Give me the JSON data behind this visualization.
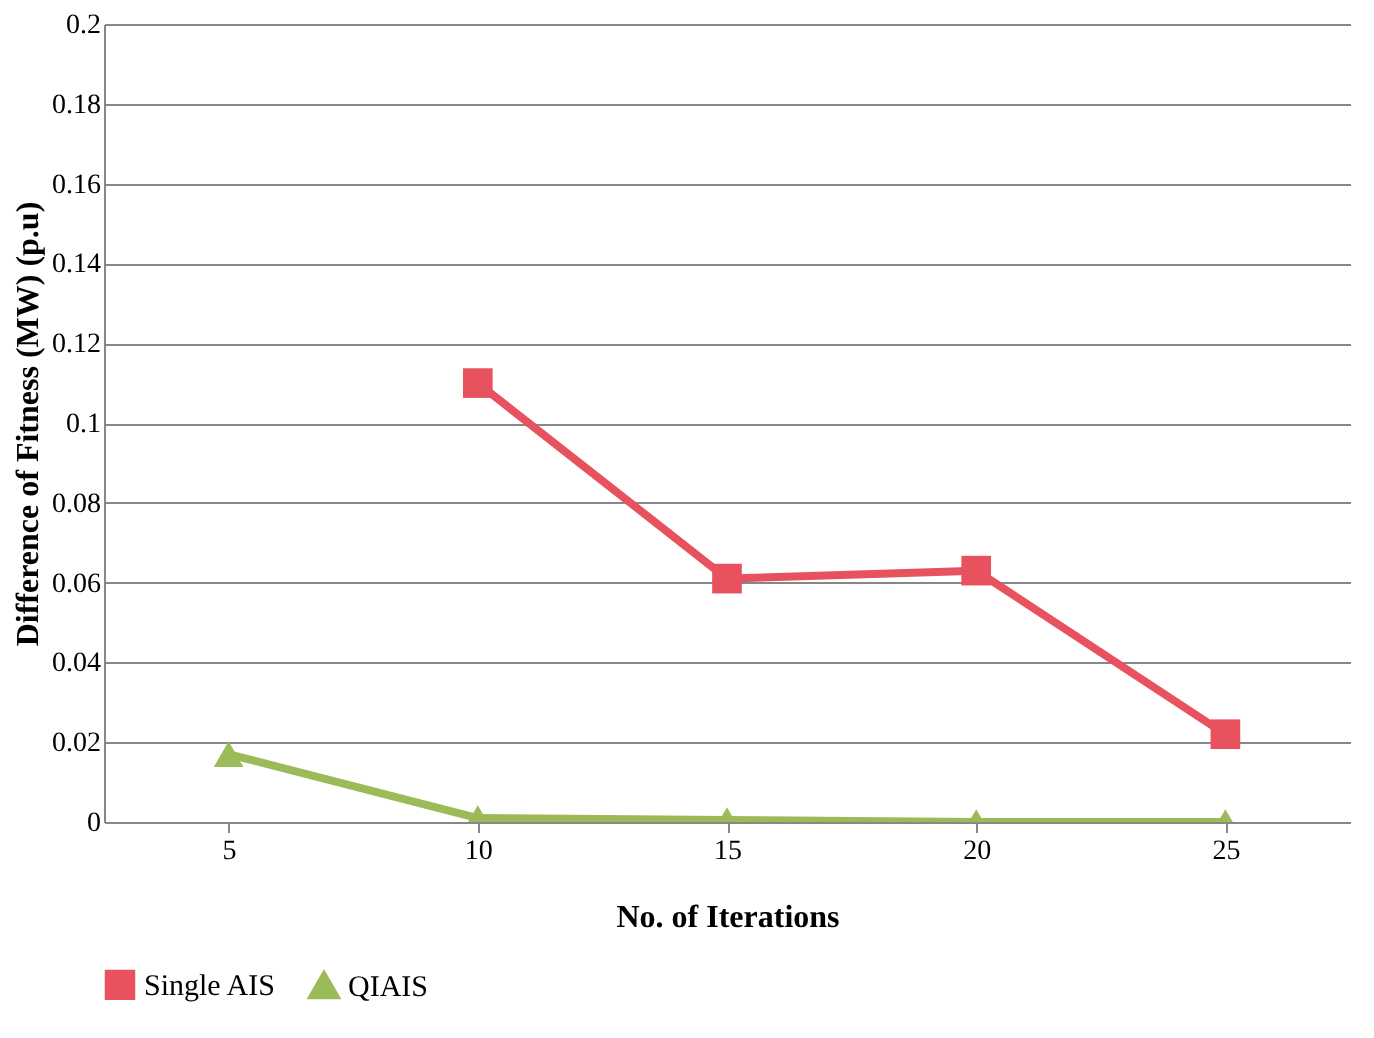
{
  "chart_data": {
    "type": "line",
    "xlabel": "No. of Iterations",
    "ylabel": "Difference of Fitness (MW) (p.u)",
    "categories": [
      "5",
      "10",
      "15",
      "20",
      "25"
    ],
    "series": [
      {
        "name": "Single AIS",
        "color": "#e8525f",
        "marker": "square",
        "values": [
          null,
          0.11,
          0.061,
          0.063,
          0.022
        ]
      },
      {
        "name": "QIAIS",
        "color": "#9bbb59",
        "marker": "triangle",
        "values": [
          0.017,
          0.001,
          0.0005,
          0,
          0
        ]
      }
    ],
    "ylim": [
      0,
      0.2
    ],
    "yticks": [
      0,
      0.02,
      0.04,
      0.06,
      0.08,
      0.1,
      0.12,
      0.14,
      0.16,
      0.18,
      0.2
    ],
    "grid": "y",
    "legend": "bottom",
    "line_style": "solid"
  }
}
